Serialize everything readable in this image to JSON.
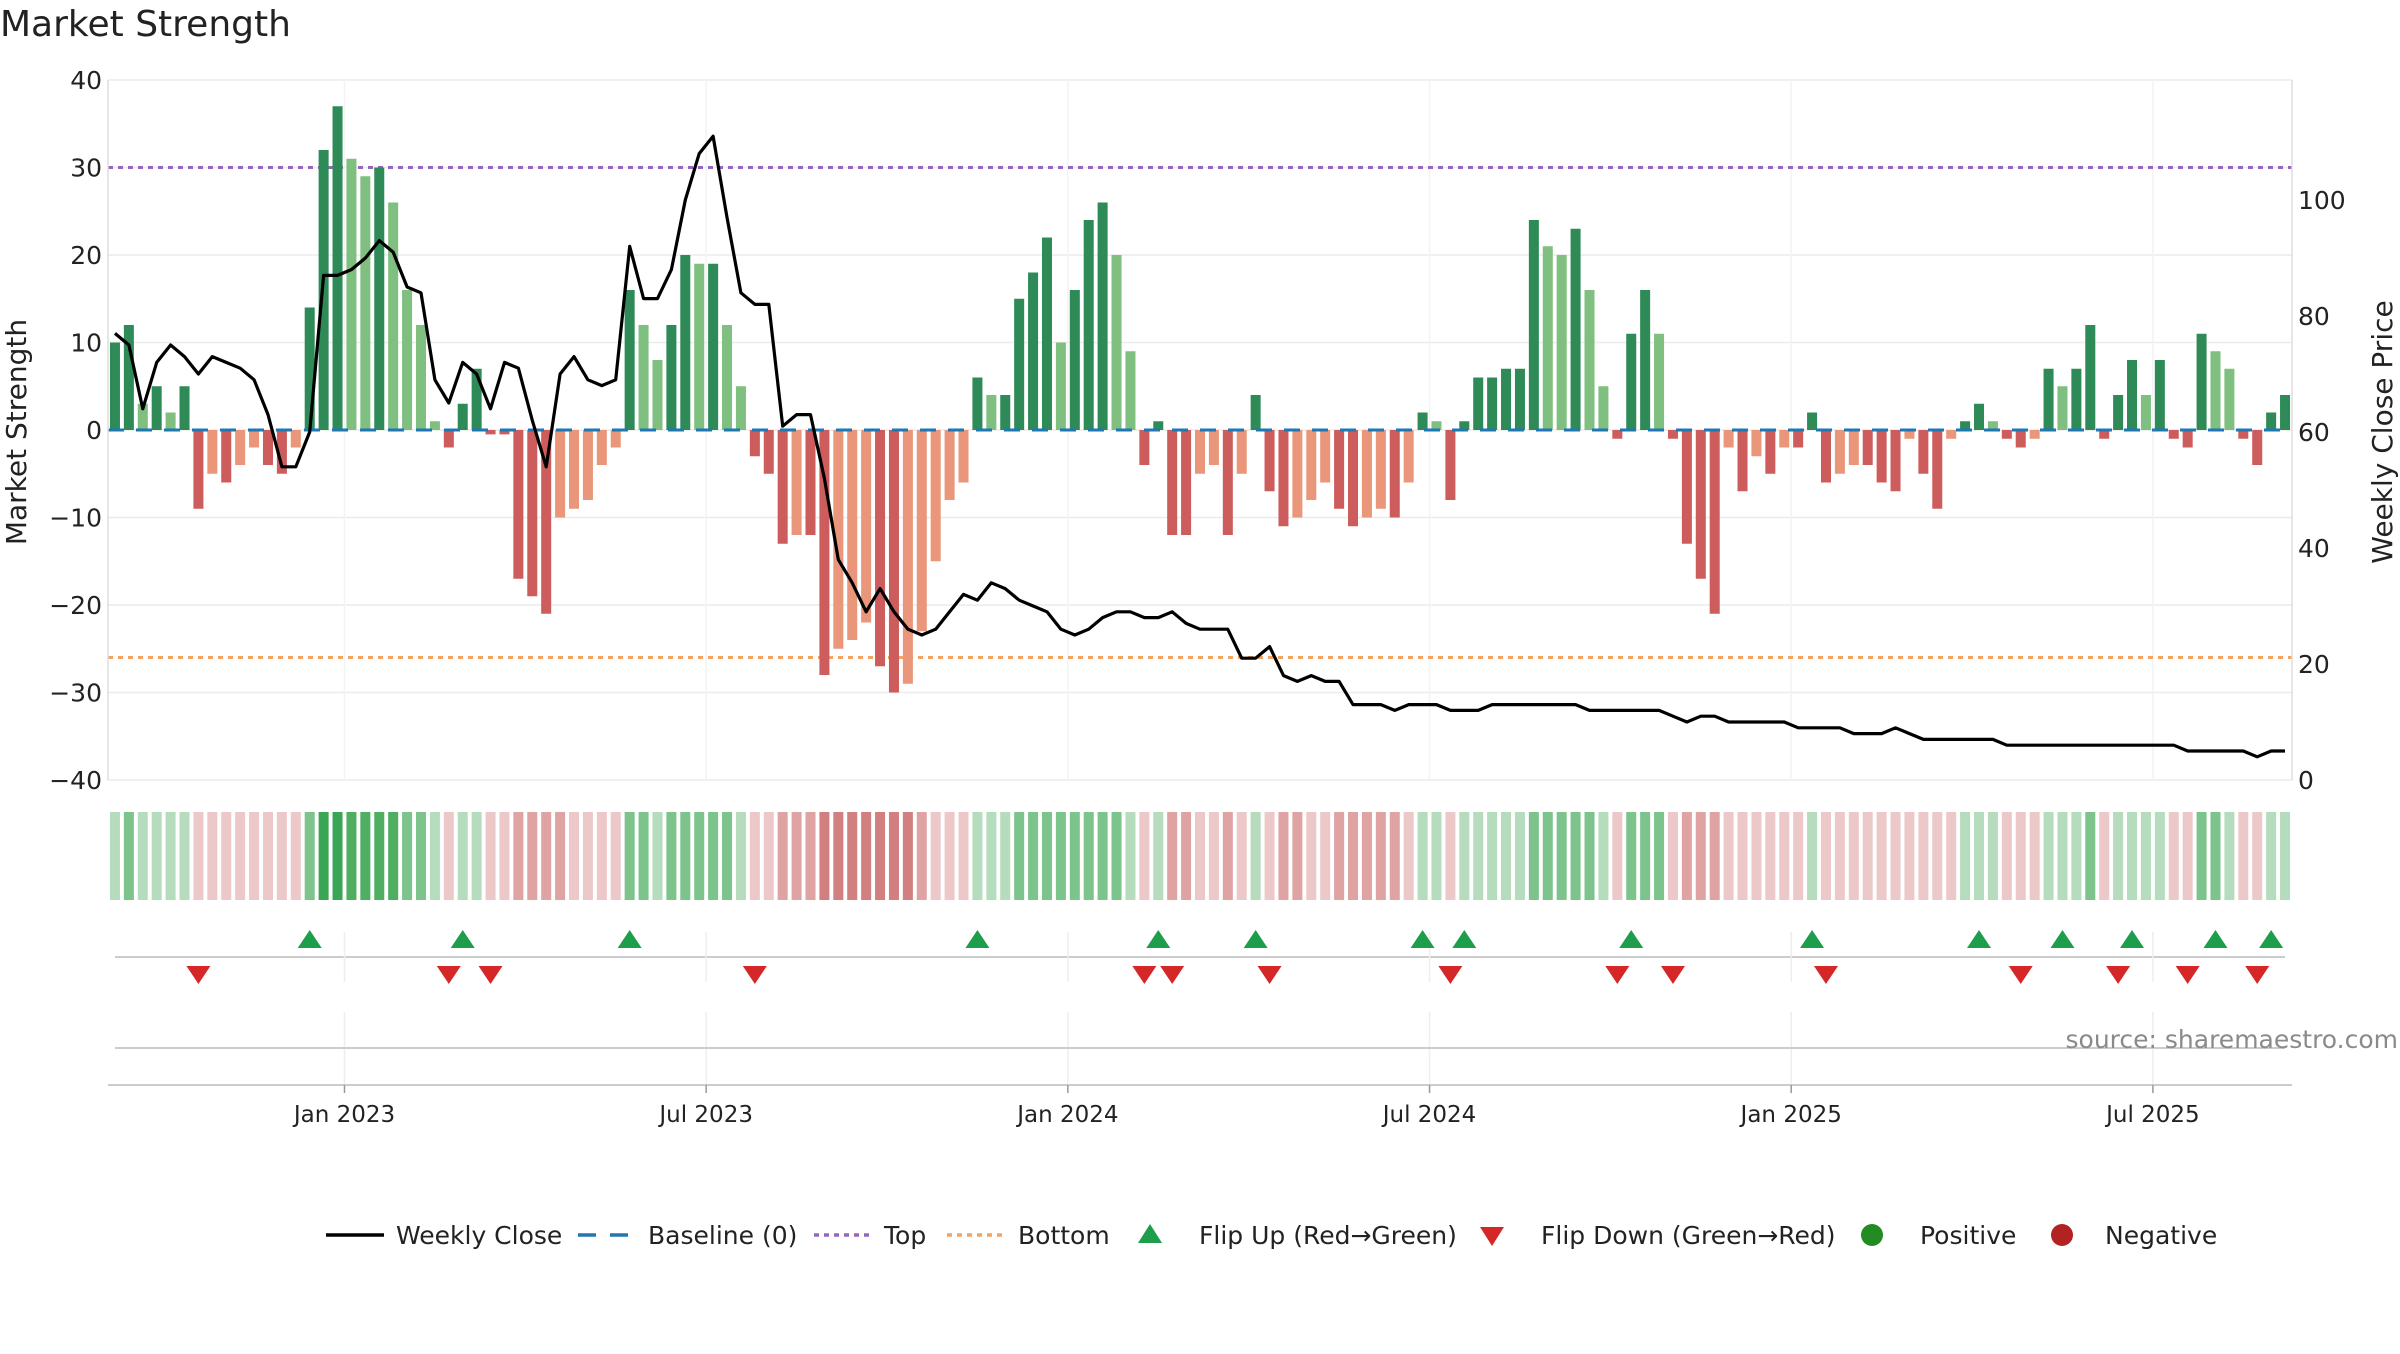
{
  "title": "Market Strength",
  "source": "source: sharemaestro.com",
  "chart_data": {
    "type": "bar",
    "title": "Market Strength",
    "ylabel_left": "Market Strength",
    "ylabel_right": "Weekly Close Price",
    "ylim_left": [
      -40,
      40
    ],
    "ylim_right": [
      0,
      120
    ],
    "yticks_left": [
      "40",
      "30",
      "20",
      "10",
      "0",
      "−10",
      "−20",
      "−30",
      "−40"
    ],
    "yticks_right": [
      "100",
      "80",
      "60",
      "40",
      "20",
      "0"
    ],
    "x_tick_labels": [
      "Jan 2023",
      "Jul 2023",
      "Jan 2024",
      "Jul 2024",
      "Jan 2025",
      "Jul 2025"
    ],
    "x_tick_weeks": [
      17,
      43,
      69,
      95,
      121,
      147
    ],
    "top_line": 30,
    "bottom_line": -26,
    "week_count": 157,
    "strength": [
      10,
      12,
      3,
      5,
      2,
      5,
      -9,
      -5,
      -6,
      -4,
      -2,
      -4,
      -5,
      -2,
      14,
      32,
      37,
      31,
      29,
      30,
      26,
      16,
      12,
      1,
      -2,
      3,
      7,
      -0.5,
      -0.5,
      -17,
      -19,
      -21,
      -10,
      -9,
      -8,
      -4,
      -2,
      16,
      12,
      8,
      12,
      20,
      19,
      19,
      12,
      5,
      -3,
      -5,
      -13,
      -12,
      -12,
      -28,
      -25,
      -24,
      -22,
      -27,
      -30,
      -29,
      -23,
      -15,
      -8,
      -6,
      6,
      4,
      4,
      15,
      18,
      22,
      10,
      16,
      24,
      26,
      20,
      9,
      -4,
      1,
      -12,
      -12,
      -5,
      -4,
      -12,
      -5,
      4,
      -7,
      -11,
      -10,
      -8,
      -6,
      -9,
      -11,
      -10,
      -9,
      -10,
      -6,
      2,
      1,
      -8,
      1,
      6,
      6,
      7,
      7,
      24,
      21,
      20,
      23,
      16,
      5,
      -1,
      11,
      16,
      11,
      -1,
      -13,
      -17,
      -21,
      -2,
      -7,
      -3,
      -5,
      -2,
      -2,
      2,
      -6,
      -5,
      -4,
      -4,
      -6,
      -7,
      -1,
      -5,
      -9,
      -1,
      1,
      3,
      1,
      -1,
      -2,
      -1,
      7,
      5,
      7,
      12,
      -1,
      4,
      8,
      4,
      8,
      -1,
      -2,
      11,
      9,
      7,
      -1,
      -4,
      2,
      4
    ],
    "close": [
      77,
      75,
      64,
      72,
      75,
      73,
      70,
      73,
      72,
      71,
      69,
      63,
      54,
      54,
      60,
      87,
      87,
      88,
      90,
      93,
      91,
      85,
      84,
      69,
      65,
      72,
      70,
      64,
      72,
      71,
      62,
      54,
      70,
      73,
      69,
      68,
      69,
      92,
      83,
      83,
      88,
      100,
      108,
      111,
      97,
      84,
      82,
      82,
      61,
      63,
      63,
      52,
      38,
      34,
      29,
      33,
      29,
      26,
      25,
      26,
      29,
      32,
      31,
      34,
      33,
      31,
      30,
      29,
      26,
      25,
      26,
      28,
      29,
      29,
      28,
      28,
      29,
      27,
      26,
      26,
      26,
      21,
      21,
      23,
      18,
      17,
      18,
      17,
      17,
      13,
      13,
      13,
      12,
      13,
      13,
      13,
      12,
      12,
      12,
      13,
      13,
      13,
      13,
      13,
      13,
      13,
      12,
      12,
      12,
      12,
      12,
      12,
      11,
      10,
      11,
      11,
      10,
      10,
      10,
      10,
      10,
      9,
      9,
      9,
      9,
      8,
      8,
      8,
      9,
      8,
      7,
      7,
      7,
      7,
      7,
      7,
      6,
      6,
      6,
      6,
      6,
      6,
      6,
      6,
      6,
      6,
      6,
      6,
      6,
      5,
      5,
      5,
      5,
      5,
      4,
      5,
      5
    ],
    "heat_levels": [
      1,
      2,
      1,
      1,
      1,
      1,
      -1,
      -1,
      -1,
      -1,
      -1,
      -1,
      -1,
      -1,
      2,
      4,
      4,
      3,
      3,
      3,
      3,
      2,
      2,
      1,
      -1,
      1,
      1,
      -1,
      -1,
      -2,
      -2,
      -2,
      -2,
      -1,
      -1,
      -1,
      -1,
      2,
      2,
      1,
      2,
      2,
      2,
      2,
      2,
      1,
      -1,
      -1,
      -2,
      -2,
      -2,
      -3,
      -3,
      -3,
      -3,
      -3,
      -3,
      -3,
      -2,
      -1,
      -1,
      -1,
      1,
      1,
      1,
      2,
      2,
      2,
      2,
      2,
      2,
      2,
      2,
      1,
      -1,
      1,
      -2,
      -2,
      -1,
      -1,
      -2,
      -1,
      1,
      -1,
      -2,
      -2,
      -1,
      -1,
      -2,
      -2,
      -2,
      -2,
      -2,
      -1,
      1,
      1,
      -1,
      1,
      1,
      1,
      1,
      1,
      2,
      2,
      2,
      2,
      2,
      1,
      -1,
      2,
      2,
      2,
      -1,
      -2,
      -2,
      -2,
      -1,
      -1,
      -1,
      -1,
      -1,
      -1,
      1,
      -1,
      -1,
      -1,
      -1,
      -1,
      -1,
      -1,
      -1,
      -1,
      -1,
      1,
      1,
      1,
      -1,
      -1,
      -1,
      1,
      1,
      1,
      2,
      -1,
      1,
      1,
      1,
      1,
      -1,
      -1,
      2,
      2,
      1,
      -1,
      -1,
      1,
      1
    ],
    "flip_up_weeks": [
      14,
      25,
      37,
      62,
      75,
      82,
      94,
      97,
      109,
      122,
      134,
      140,
      145,
      151,
      155
    ],
    "flip_down_weeks": [
      6,
      24,
      27,
      46,
      74,
      76,
      83,
      96,
      108,
      112,
      123,
      137,
      144,
      149,
      154
    ],
    "legend": [
      "Weekly Close",
      "Baseline (0)",
      "Top",
      "Bottom",
      "Flip Up (Red→Green)",
      "Flip Down (Green→Red)",
      "Positive",
      "Negative"
    ],
    "colors": {
      "strong_green": "#2e8b57",
      "light_green": "#7fbf7f",
      "strong_red": "#cd5c5c",
      "light_red": "#e9967a",
      "close_line": "#000000",
      "baseline": "#1f77b4",
      "top": "#9467bd",
      "bottom": "#f4a460",
      "flip_up": "#1e9e4a",
      "flip_down": "#d62728",
      "positive": "#228b22",
      "negative": "#b22222"
    }
  }
}
